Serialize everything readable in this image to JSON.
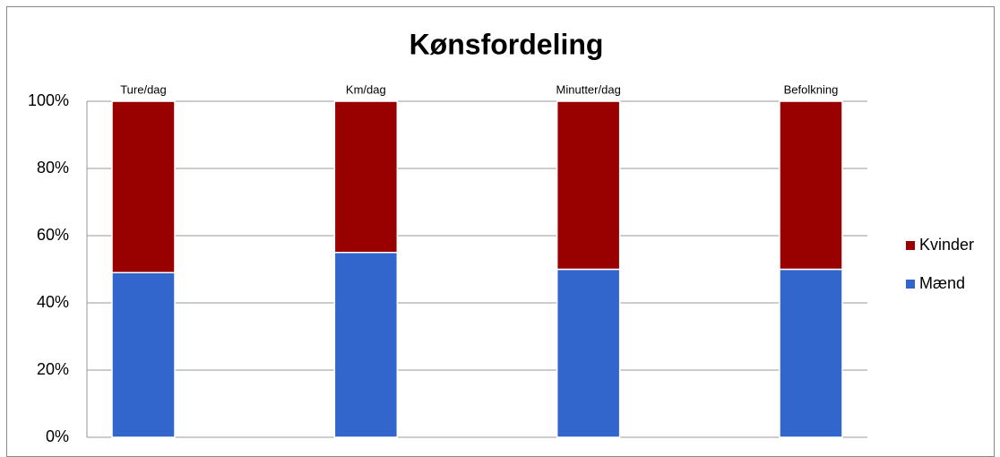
{
  "chart_data": {
    "type": "stacked_bar",
    "title": "Kønsfordeling",
    "categories": [
      "Ture/dag",
      "Km/dag",
      "Minutter/dag",
      "Befolkning"
    ],
    "series": [
      {
        "name": "Mænd",
        "color": "#3366cc",
        "values": [
          49,
          55,
          50,
          50
        ]
      },
      {
        "name": "Kvinder",
        "color": "#990000",
        "values": [
          51,
          45,
          50,
          50
        ]
      }
    ],
    "ylim": [
      0,
      100
    ],
    "yticks": [
      {
        "value": 0,
        "label": "0%"
      },
      {
        "value": 20,
        "label": "20%"
      },
      {
        "value": 40,
        "label": "40%"
      },
      {
        "value": 60,
        "label": "60%"
      },
      {
        "value": 80,
        "label": "80%"
      },
      {
        "value": 100,
        "label": "100%"
      }
    ],
    "grid": true,
    "legend": "right"
  }
}
